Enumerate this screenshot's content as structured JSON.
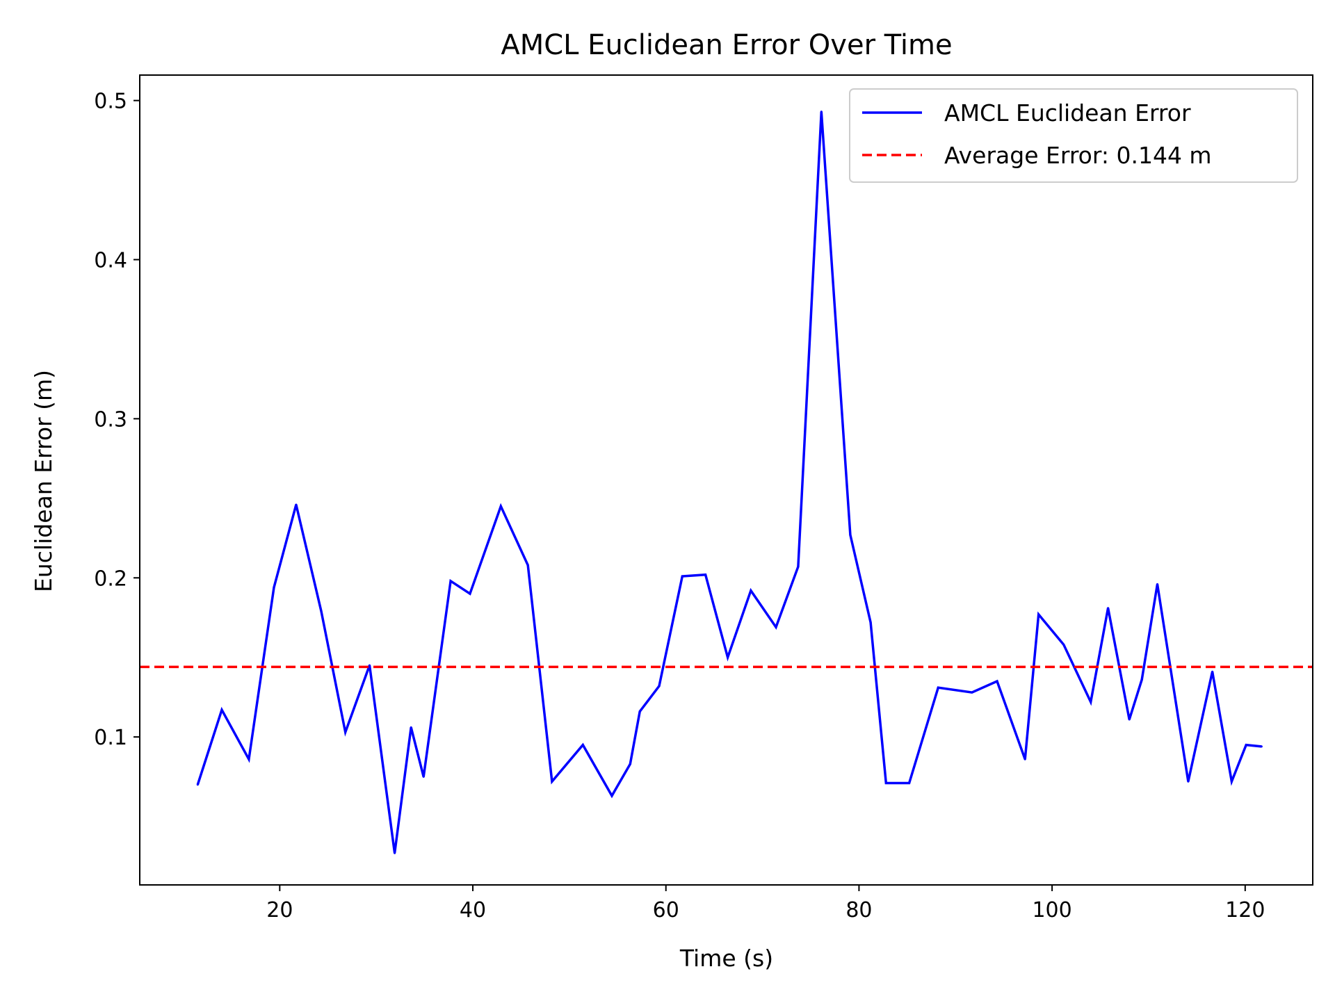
{
  "chart_data": {
    "type": "line",
    "title": "AMCL Euclidean Error Over Time",
    "xlabel": "Time (s)",
    "ylabel": "Euclidean Error (m)",
    "xlim": [
      5.5,
      127
    ],
    "ylim": [
      0.007,
      0.516
    ],
    "xticks": [
      20,
      40,
      60,
      80,
      100,
      120
    ],
    "yticks": [
      0.1,
      0.2,
      0.3,
      0.4,
      0.5
    ],
    "xtick_labels": [
      "20",
      "40",
      "60",
      "80",
      "100",
      "120"
    ],
    "ytick_labels": [
      "0.1",
      "0.2",
      "0.3",
      "0.4",
      "0.5"
    ],
    "grid": false,
    "legend_position": "top-right",
    "series": [
      {
        "name": "AMCL Euclidean Error",
        "color": "#0000ff",
        "style": "solid",
        "x": [
          11.5,
          14.0,
          16.8,
          19.4,
          21.7,
          24.3,
          26.8,
          29.3,
          31.9,
          33.6,
          34.9,
          37.7,
          39.7,
          42.9,
          45.7,
          48.2,
          51.4,
          54.4,
          56.3,
          57.3,
          59.3,
          61.7,
          64.1,
          66.4,
          68.8,
          71.4,
          73.7,
          76.1,
          79.1,
          81.2,
          82.8,
          85.2,
          88.2,
          91.7,
          94.3,
          97.2,
          98.6,
          101.2,
          104.0,
          105.8,
          108.0,
          109.3,
          110.9,
          114.1,
          116.6,
          118.6,
          120.1,
          121.7
        ],
        "values": [
          0.07,
          0.117,
          0.086,
          0.194,
          0.246,
          0.179,
          0.103,
          0.145,
          0.027,
          0.106,
          0.075,
          0.198,
          0.19,
          0.245,
          0.208,
          0.072,
          0.095,
          0.063,
          0.083,
          0.116,
          0.132,
          0.201,
          0.202,
          0.15,
          0.192,
          0.169,
          0.207,
          0.493,
          0.227,
          0.172,
          0.071,
          0.071,
          0.131,
          0.128,
          0.135,
          0.086,
          0.177,
          0.158,
          0.122,
          0.181,
          0.111,
          0.136,
          0.196,
          0.072,
          0.141,
          0.072,
          0.095,
          0.094
        ]
      },
      {
        "name": "Average Error: 0.144 m",
        "color": "#ff0000",
        "style": "dashed",
        "value": 0.144
      }
    ]
  }
}
